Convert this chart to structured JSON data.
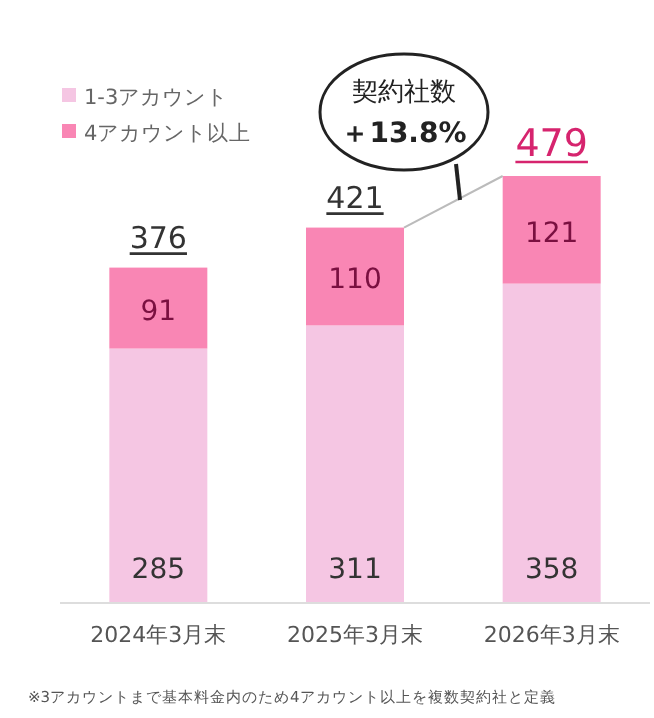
{
  "chart_data": {
    "type": "bar",
    "stacked": true,
    "data_labels": true,
    "legend": "top left",
    "categories": [
      "2024年3月末",
      "2025年3月末",
      "2026年3月末"
    ],
    "series": [
      {
        "name": "1-3アカウント",
        "color": "#f5c6e3",
        "values": [
          285,
          311,
          358
        ]
      },
      {
        "name": "4アカウント以上",
        "color": "#f986b4",
        "values": [
          91,
          110,
          121
        ]
      }
    ],
    "totals": [
      "376",
      "421",
      "479"
    ],
    "annotations": [
      "契約社数",
      "＋13.8%",
      "※3アカウントまで基本料金内のため4アカウント以上を複数契約社と定義"
    ]
  }
}
